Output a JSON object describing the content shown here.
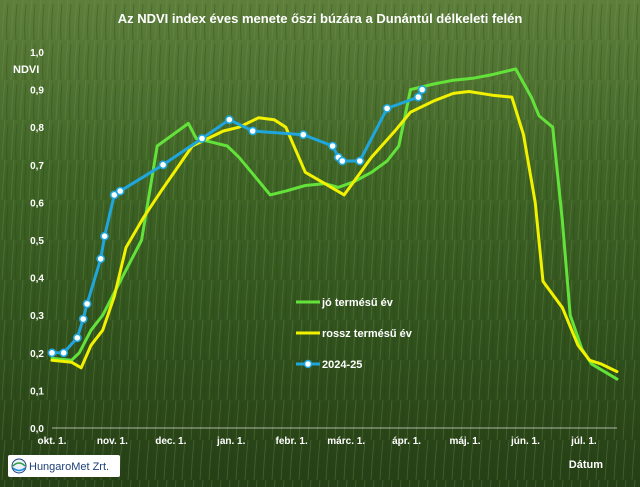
{
  "chart_data": {
    "type": "line",
    "title": "Az NDVI index éves menete őszi búzára a Dunántúl délkeleti felén",
    "ylabel": "NDVI",
    "xlabel": "Dátum",
    "ylim": [
      0,
      1.0
    ],
    "yticks": [
      "0,0",
      "0,1",
      "0,2",
      "0,3",
      "0,4",
      "0,5",
      "0,6",
      "0,7",
      "0,8",
      "0,9",
      "1,0"
    ],
    "x_ticks": [
      {
        "label": "okt. 1.",
        "day": 0
      },
      {
        "label": "nov. 1.",
        "day": 31
      },
      {
        "label": "dec. 1.",
        "day": 61
      },
      {
        "label": "jan. 1.",
        "day": 92
      },
      {
        "label": "febr. 1.",
        "day": 123
      },
      {
        "label": "márc. 1.",
        "day": 151
      },
      {
        "label": "ápr. 1.",
        "day": 182
      },
      {
        "label": "máj. 1.",
        "day": 212
      },
      {
        "label": "jún. 1.",
        "day": 243
      },
      {
        "label": "júl. 1.",
        "day": 273
      }
    ],
    "x_range_days": [
      0,
      290
    ],
    "grid": false,
    "legend_position": "bottom-center",
    "series": [
      {
        "name": "jó termésű év",
        "color": "#63e23a",
        "markers": false,
        "points": [
          [
            0,
            0.185
          ],
          [
            10,
            0.18
          ],
          [
            14,
            0.2
          ],
          [
            20,
            0.26
          ],
          [
            26,
            0.3
          ],
          [
            31,
            0.35
          ],
          [
            38,
            0.42
          ],
          [
            46,
            0.5
          ],
          [
            54,
            0.75
          ],
          [
            62,
            0.78
          ],
          [
            70,
            0.81
          ],
          [
            74,
            0.77
          ],
          [
            82,
            0.76
          ],
          [
            90,
            0.75
          ],
          [
            96,
            0.72
          ],
          [
            104,
            0.67
          ],
          [
            112,
            0.62
          ],
          [
            120,
            0.63
          ],
          [
            130,
            0.645
          ],
          [
            140,
            0.65
          ],
          [
            147,
            0.64
          ],
          [
            155,
            0.655
          ],
          [
            164,
            0.68
          ],
          [
            172,
            0.71
          ],
          [
            178,
            0.75
          ],
          [
            184,
            0.9
          ],
          [
            196,
            0.915
          ],
          [
            206,
            0.925
          ],
          [
            216,
            0.93
          ],
          [
            226,
            0.94
          ],
          [
            238,
            0.955
          ],
          [
            246,
            0.88
          ],
          [
            250,
            0.83
          ],
          [
            257,
            0.8
          ],
          [
            262,
            0.55
          ],
          [
            266,
            0.3
          ],
          [
            272,
            0.21
          ],
          [
            277,
            0.17
          ],
          [
            290,
            0.13
          ]
        ]
      },
      {
        "name": "rossz termésű év",
        "color": "#f1f100",
        "markers": false,
        "points": [
          [
            0,
            0.18
          ],
          [
            10,
            0.175
          ],
          [
            15,
            0.16
          ],
          [
            20,
            0.22
          ],
          [
            26,
            0.26
          ],
          [
            32,
            0.35
          ],
          [
            38,
            0.48
          ],
          [
            47,
            0.56
          ],
          [
            56,
            0.63
          ],
          [
            64,
            0.69
          ],
          [
            72,
            0.75
          ],
          [
            80,
            0.77
          ],
          [
            88,
            0.79
          ],
          [
            96,
            0.8
          ],
          [
            106,
            0.825
          ],
          [
            114,
            0.82
          ],
          [
            120,
            0.8
          ],
          [
            130,
            0.68
          ],
          [
            140,
            0.65
          ],
          [
            150,
            0.62
          ],
          [
            164,
            0.72
          ],
          [
            176,
            0.79
          ],
          [
            184,
            0.84
          ],
          [
            196,
            0.87
          ],
          [
            206,
            0.89
          ],
          [
            214,
            0.895
          ],
          [
            226,
            0.885
          ],
          [
            236,
            0.88
          ],
          [
            242,
            0.78
          ],
          [
            248,
            0.6
          ],
          [
            252,
            0.39
          ],
          [
            262,
            0.32
          ],
          [
            270,
            0.22
          ],
          [
            276,
            0.18
          ],
          [
            282,
            0.17
          ],
          [
            290,
            0.15
          ]
        ]
      },
      {
        "name": "2024-25",
        "color": "#1fa6dc",
        "markers": true,
        "points": [
          [
            0,
            0.2
          ],
          [
            6,
            0.2
          ],
          [
            13,
            0.24
          ],
          [
            16,
            0.29
          ],
          [
            18,
            0.33
          ],
          [
            25,
            0.45
          ],
          [
            27,
            0.51
          ],
          [
            32,
            0.62
          ],
          [
            35,
            0.63
          ],
          [
            57,
            0.7
          ],
          [
            77,
            0.77
          ],
          [
            91,
            0.82
          ],
          [
            103,
            0.79
          ],
          [
            129,
            0.78
          ],
          [
            144,
            0.75
          ],
          [
            147,
            0.72
          ],
          [
            149,
            0.71
          ],
          [
            158,
            0.71
          ],
          [
            172,
            0.85
          ],
          [
            188,
            0.88
          ],
          [
            190,
            0.9
          ]
        ]
      }
    ]
  },
  "branding": {
    "logo_text": "HungaroMet Zrt."
  }
}
